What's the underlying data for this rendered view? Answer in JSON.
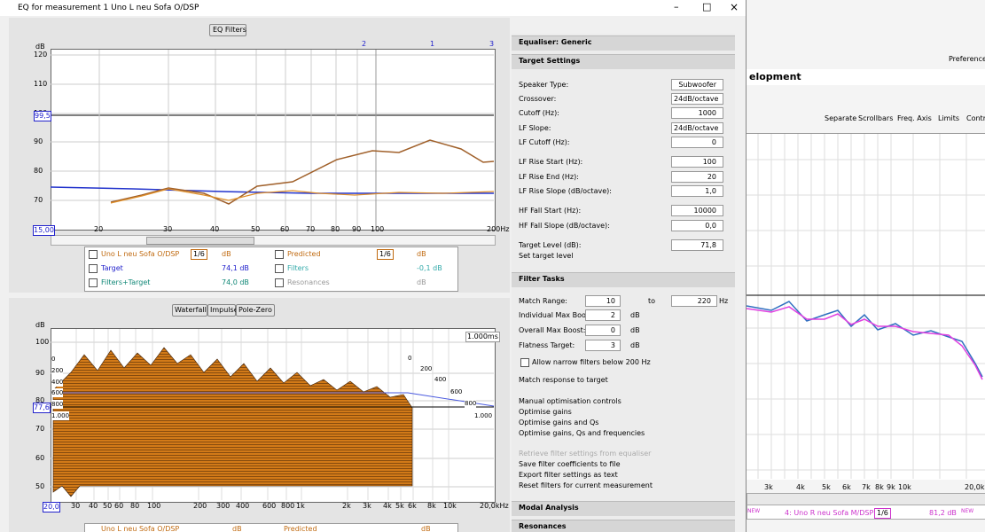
{
  "window": {
    "title": "EQ for measurement 1 Uno L neu Sofa O/DSP"
  },
  "top_graph": {
    "button": "EQ Filters",
    "unit": "dB",
    "yticks": [
      "120",
      "110",
      "100",
      "90",
      "80",
      "70"
    ],
    "level_marker": "99,5",
    "xticks": [
      "15,00",
      "20",
      "30",
      "40",
      "50",
      "60",
      "70",
      "80",
      "90",
      "100",
      "200Hz"
    ],
    "filter_markers": [
      "2",
      "1",
      "3"
    ]
  },
  "top_legend": [
    {
      "name": "Uno L neu Sofa O/DSP",
      "smoothing": "1/6",
      "value": "dB"
    },
    {
      "name": "Predicted",
      "smoothing": "1/6",
      "value": "dB"
    },
    {
      "name": "Target",
      "value": "74,1 dB"
    },
    {
      "name": "Filters",
      "value": "-0,1 dB"
    },
    {
      "name": "Filters+Target",
      "value": "74,0 dB"
    },
    {
      "name": "Resonances",
      "value": "dB"
    }
  ],
  "bottom_graph": {
    "tabs": [
      "Waterfall",
      "Impulse",
      "Pole-Zero"
    ],
    "unit": "dB",
    "yticks": [
      "100",
      "90",
      "80",
      "70",
      "60",
      "50"
    ],
    "level_marker": "77,6",
    "xticks": [
      "20,0",
      "30",
      "40",
      "50",
      "60",
      "80",
      "100",
      "200",
      "300",
      "400",
      "600",
      "800",
      "1k",
      "2k",
      "3k",
      "4k",
      "5k",
      "6k",
      "8k",
      "10k",
      "20,0kHz"
    ],
    "time_unit_label": "1.000ms",
    "time_labels_left": [
      "0",
      "200",
      "400",
      "600",
      "800",
      "1.000"
    ],
    "time_labels_right": [
      "0",
      "200",
      "400",
      "600",
      "800",
      "1.000"
    ]
  },
  "bottom_legend": [
    {
      "name": "Uno L neu Sofa O/DSP",
      "value": "dB"
    },
    {
      "name": "Predicted",
      "value": "dB"
    }
  ],
  "equaliser": {
    "header": "Equaliser: Generic"
  },
  "target_settings": {
    "header": "Target Settings",
    "fields": [
      {
        "label": "Speaker Type:",
        "value": "Subwoofer"
      },
      {
        "label": "Crossover:",
        "value": "24dB/octave"
      },
      {
        "label": "Cutoff (Hz):",
        "value": "1000"
      },
      {
        "label": "LF Slope:",
        "value": "24dB/octave"
      },
      {
        "label": "LF Cutoff (Hz):",
        "value": "0"
      },
      {
        "label": "LF Rise Start (Hz):",
        "value": "100"
      },
      {
        "label": "LF Rise End (Hz):",
        "value": "20"
      },
      {
        "label": "LF Rise Slope (dB/octave):",
        "value": "1,0"
      },
      {
        "label": "HF Fall Start (Hz):",
        "value": "10000"
      },
      {
        "label": "HF Fall Slope (dB/octave):",
        "value": "0,0"
      },
      {
        "label": "Target Level (dB):",
        "value": "71,8"
      }
    ],
    "action": "Set target level"
  },
  "filter_tasks": {
    "header": "Filter Tasks",
    "match_range": {
      "label": "Match Range:",
      "from": "10",
      "joiner": "to",
      "to": "220",
      "unit": "Hz"
    },
    "fields": [
      {
        "label": "Individual Max Boost:",
        "value": "2",
        "unit": "dB"
      },
      {
        "label": "Overall Max Boost:",
        "value": "0",
        "unit": "dB"
      },
      {
        "label": "Flatness Target:",
        "value": "3",
        "unit": "dB"
      }
    ],
    "checkbox": "Allow narrow filters below 200 Hz",
    "actions": [
      "Match response to target",
      "Manual optimisation controls",
      "Optimise gains",
      "Optimise gains and Qs",
      "Optimise gains, Qs and frequencies",
      "Retrieve filter settings from equaliser",
      "Save filter coefficients to file",
      "Export filter settings as text",
      "Reset filters for current measurement"
    ]
  },
  "sections": [
    "Modal Analysis",
    "Resonances"
  ],
  "background_window": {
    "title": "elopment",
    "preferences": "Preferences",
    "toolbar": [
      "Separate",
      "Scrollbars",
      "Freq. Axis",
      "Limits",
      "Contro"
    ],
    "xticks": [
      "3k",
      "4k",
      "5k",
      "6k",
      "7k",
      "8k",
      "9k",
      "10k",
      "20,0kH"
    ],
    "legend": {
      "badge": "NEW",
      "name": "4: Uno R neu Sofa M/DSP",
      "smoothing": "1/6",
      "value": "81,2 dB",
      "value_badge": "NEW"
    }
  }
}
